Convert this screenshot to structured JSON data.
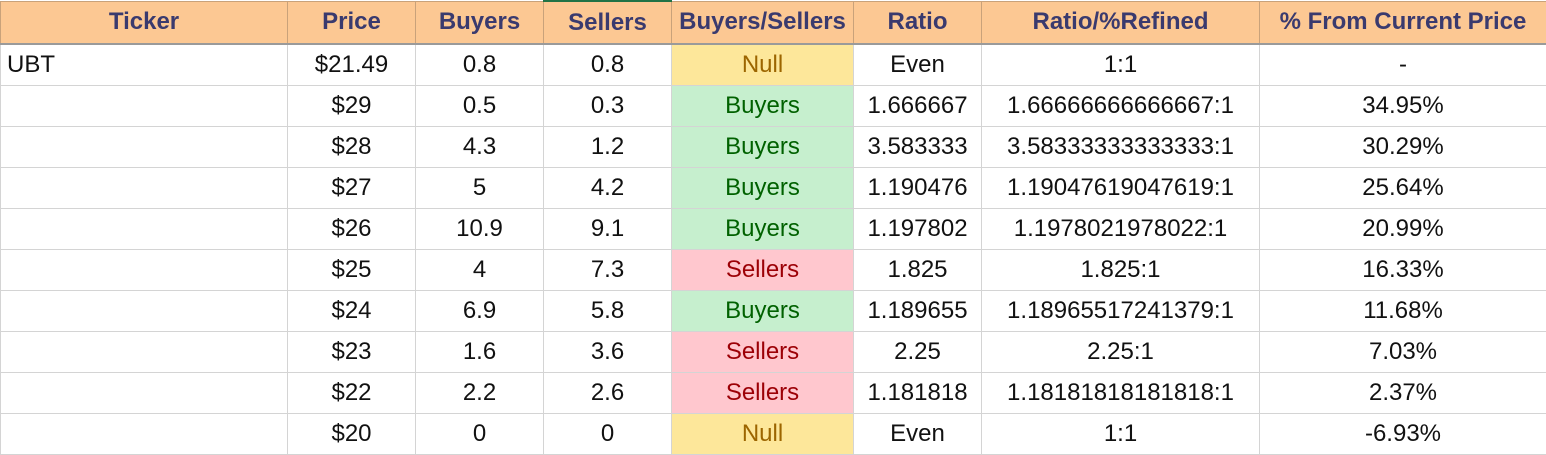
{
  "headers": [
    "Ticker",
    "Price",
    "Buyers",
    "Sellers",
    "Buyers/Sellers",
    "Ratio",
    "Ratio/%Refined",
    "% From Current Price"
  ],
  "rows": [
    {
      "ticker": "UBT",
      "price": "$21.49",
      "buyers": "0.8",
      "sellers": "0.8",
      "side": "Null",
      "ratio": "Even",
      "refined": "1:1",
      "pct": "-"
    },
    {
      "ticker": "",
      "price": "$29",
      "buyers": "0.5",
      "sellers": "0.3",
      "side": "Buyers",
      "ratio": "1.666667",
      "refined": "1.66666666666667:1",
      "pct": "34.95%"
    },
    {
      "ticker": "",
      "price": "$28",
      "buyers": "4.3",
      "sellers": "1.2",
      "side": "Buyers",
      "ratio": "3.583333",
      "refined": "3.58333333333333:1",
      "pct": "30.29%"
    },
    {
      "ticker": "",
      "price": "$27",
      "buyers": "5",
      "sellers": "4.2",
      "side": "Buyers",
      "ratio": "1.190476",
      "refined": "1.19047619047619:1",
      "pct": "25.64%"
    },
    {
      "ticker": "",
      "price": "$26",
      "buyers": "10.9",
      "sellers": "9.1",
      "side": "Buyers",
      "ratio": "1.197802",
      "refined": "1.1978021978022:1",
      "pct": "20.99%"
    },
    {
      "ticker": "",
      "price": "$25",
      "buyers": "4",
      "sellers": "7.3",
      "side": "Sellers",
      "ratio": "1.825",
      "refined": "1.825:1",
      "pct": "16.33%"
    },
    {
      "ticker": "",
      "price": "$24",
      "buyers": "6.9",
      "sellers": "5.8",
      "side": "Buyers",
      "ratio": "1.189655",
      "refined": "1.18965517241379:1",
      "pct": "11.68%"
    },
    {
      "ticker": "",
      "price": "$23",
      "buyers": "1.6",
      "sellers": "3.6",
      "side": "Sellers",
      "ratio": "2.25",
      "refined": "2.25:1",
      "pct": "7.03%"
    },
    {
      "ticker": "",
      "price": "$22",
      "buyers": "2.2",
      "sellers": "2.6",
      "side": "Sellers",
      "ratio": "1.181818",
      "refined": "1.18181818181818:1",
      "pct": "2.37%"
    },
    {
      "ticker": "",
      "price": "$20",
      "buyers": "0",
      "sellers": "0",
      "side": "Null",
      "ratio": "Even",
      "refined": "1:1",
      "pct": "-6.93%"
    }
  ],
  "colors": {
    "header_bg": "#fcc893",
    "header_text": "#3a3a6e",
    "null_bg": "#fde79a",
    "null_text": "#9c6500",
    "buyers_bg": "#c6efce",
    "buyers_text": "#006100",
    "sellers_bg": "#ffc7ce",
    "sellers_text": "#9c0006"
  }
}
